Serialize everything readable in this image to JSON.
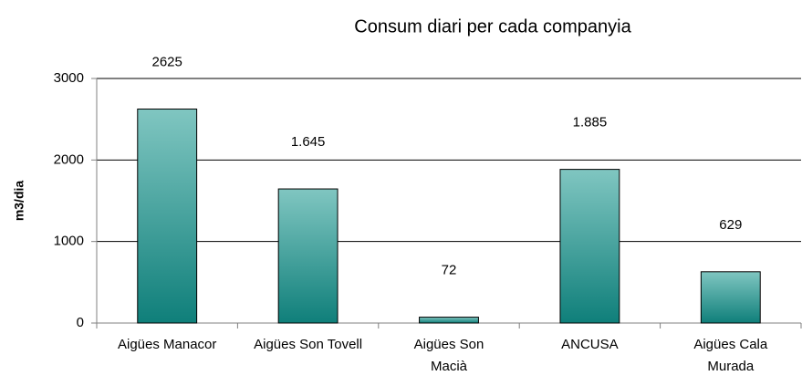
{
  "chart_data": {
    "type": "bar",
    "title": "Consum diari per cada companyia",
    "y_label": "m3/dia",
    "categories": [
      "Aigües Manacor",
      "Aigües Son Tovell",
      "Aigües Son Macià",
      "ANCUSA",
      "Aigües Cala Murada"
    ],
    "values": [
      2625,
      1645,
      72,
      1885,
      629
    ],
    "value_labels": [
      "2625",
      "1.645",
      "72",
      "1.885",
      "629"
    ],
    "color": "#0f7f7a",
    "ylim": [
      0,
      3000
    ],
    "yticks": [
      0,
      1000,
      2000,
      3000
    ],
    "grid": true
  }
}
